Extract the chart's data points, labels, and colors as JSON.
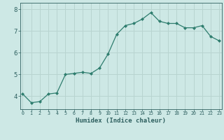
{
  "x": [
    0,
    1,
    2,
    3,
    4,
    5,
    6,
    7,
    8,
    9,
    10,
    11,
    12,
    13,
    14,
    15,
    16,
    17,
    18,
    19,
    20,
    21,
    22,
    23
  ],
  "y": [
    4.1,
    3.7,
    3.75,
    4.1,
    4.15,
    5.0,
    5.05,
    5.1,
    5.05,
    5.3,
    5.95,
    6.85,
    7.25,
    7.35,
    7.55,
    7.85,
    7.45,
    7.35,
    7.35,
    7.15,
    7.15,
    7.25,
    6.75,
    6.55
  ],
  "xlabel": "Humidex (Indice chaleur)",
  "line_color": "#2e7d6e",
  "marker_color": "#2e7d6e",
  "bg_color": "#cde8e5",
  "grid_color": "#b8d4d0",
  "axis_color": "#2e6060",
  "text_color": "#2e5f5f",
  "ylim": [
    3.4,
    8.3
  ],
  "yticks": [
    4,
    5,
    6,
    7,
    8
  ],
  "xticks": [
    0,
    1,
    2,
    3,
    4,
    5,
    6,
    7,
    8,
    9,
    10,
    11,
    12,
    13,
    14,
    15,
    16,
    17,
    18,
    19,
    20,
    21,
    22,
    23
  ],
  "xlim": [
    -0.3,
    23.3
  ]
}
